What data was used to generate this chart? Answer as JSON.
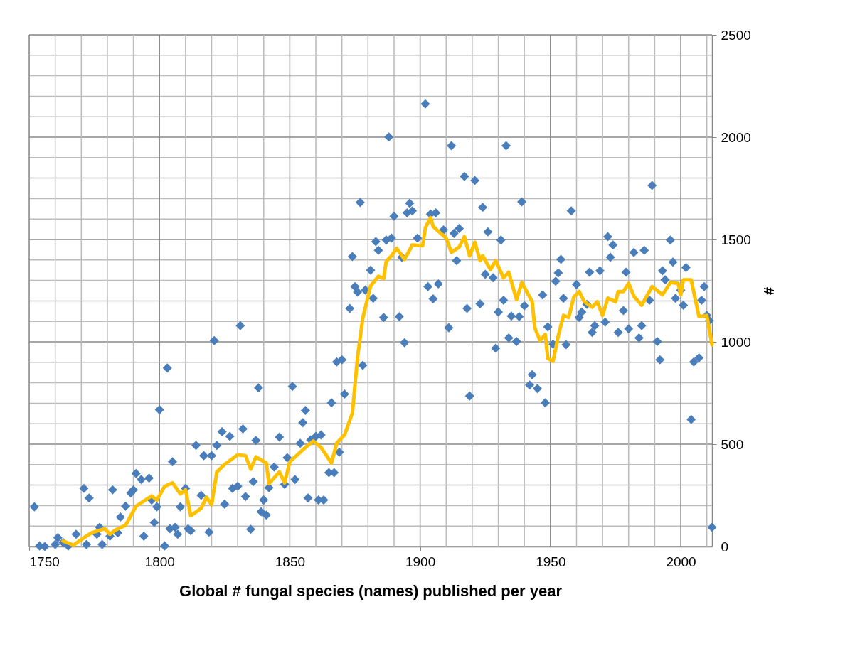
{
  "chart_data": {
    "type": "scatter",
    "title": "Global # fungal species (names) published per year",
    "ylabel": "#",
    "xlim": [
      1750,
      2012
    ],
    "ylim": [
      0,
      2500
    ],
    "xticks": [
      1750,
      {
        "value": 1760,
        "label": null
      },
      {
        "value": 1770,
        "label": null
      },
      {
        "value": 1780,
        "label": null
      },
      {
        "value": 1790,
        "label": null
      },
      1800,
      {
        "value": 1810,
        "label": null
      },
      {
        "value": 1820,
        "label": null
      },
      {
        "value": 1830,
        "label": null
      },
      {
        "value": 1840,
        "label": null
      },
      1850,
      {
        "value": 1860,
        "label": null
      },
      {
        "value": 1870,
        "label": null
      },
      {
        "value": 1880,
        "label": null
      },
      {
        "value": 1890,
        "label": null
      },
      1900,
      {
        "value": 1910,
        "label": null
      },
      {
        "value": 1920,
        "label": null
      },
      {
        "value": 1930,
        "label": null
      },
      {
        "value": 1940,
        "label": null
      },
      1950,
      {
        "value": 1960,
        "label": null
      },
      {
        "value": 1970,
        "label": null
      },
      {
        "value": 1980,
        "label": null
      },
      {
        "value": 1990,
        "label": null
      },
      2000,
      {
        "value": 2010,
        "label": null
      }
    ],
    "yticks": [
      0,
      {
        "value": 100,
        "label": null
      },
      {
        "value": 200,
        "label": null
      },
      {
        "value": 300,
        "label": null
      },
      {
        "value": 400,
        "label": null
      },
      500,
      {
        "value": 600,
        "label": null
      },
      {
        "value": 700,
        "label": null
      },
      {
        "value": 800,
        "label": null
      },
      {
        "value": 900,
        "label": null
      },
      1000,
      {
        "value": 1100,
        "label": null
      },
      {
        "value": 1200,
        "label": null
      },
      {
        "value": 1300,
        "label": null
      },
      {
        "value": 1400,
        "label": null
      },
      1500,
      {
        "value": 1600,
        "label": null
      },
      {
        "value": 1700,
        "label": null
      },
      {
        "value": 1800,
        "label": null
      },
      {
        "value": 1900,
        "label": null
      },
      2000,
      {
        "value": 2100,
        "label": null
      },
      {
        "value": 2200,
        "label": null
      },
      {
        "value": 2300,
        "label": null
      },
      {
        "value": 2400,
        "label": null
      },
      2500
    ],
    "grid": true,
    "series": [
      {
        "marker": "diamond",
        "color": "#4a7ebb",
        "x": [
          1752,
          1754,
          1756,
          1760,
          1761,
          1763,
          1765,
          1768,
          1771,
          1772,
          1773,
          1776,
          1777,
          1778,
          1781,
          1782,
          1784,
          1785,
          1787,
          1789,
          1790,
          1791,
          1793,
          1794,
          1796,
          1797,
          1798,
          1799,
          1800,
          1802,
          1803,
          1804,
          1805,
          1806,
          1807,
          1808,
          1810,
          1811,
          1812,
          1814,
          1816,
          1817,
          1819,
          1820,
          1821,
          1822,
          1824,
          1825,
          1827,
          1828,
          1830,
          1831,
          1832,
          1833,
          1835,
          1836,
          1837,
          1838,
          1839,
          1840,
          1841,
          1842,
          1844,
          1846,
          1848,
          1849,
          1851,
          1852,
          1854,
          1855,
          1856,
          1857,
          1858,
          1860,
          1861,
          1862,
          1863,
          1865,
          1866,
          1867,
          1868,
          1869,
          1870,
          1871,
          1873,
          1874,
          1875,
          1876,
          1877,
          1878,
          1879,
          1881,
          1882,
          1883,
          1884,
          1886,
          1887,
          1888,
          1889,
          1890,
          1892,
          1893,
          1894,
          1895,
          1896,
          1897,
          1899,
          1902,
          1903,
          1904,
          1905,
          1906,
          1907,
          1909,
          1911,
          1912,
          1913,
          1914,
          1915,
          1917,
          1918,
          1919,
          1921,
          1923,
          1924,
          1925,
          1926,
          1928,
          1929,
          1930,
          1931,
          1932,
          1933,
          1934,
          1935,
          1937,
          1938,
          1939,
          1940,
          1942,
          1943,
          1945,
          1947,
          1948,
          1949,
          1951,
          1952,
          1953,
          1954,
          1955,
          1956,
          1958,
          1960,
          1961,
          1962,
          1964,
          1965,
          1966,
          1967,
          1969,
          1971,
          1972,
          1973,
          1974,
          1976,
          1978,
          1979,
          1980,
          1982,
          1984,
          1985,
          1986,
          1988,
          1989,
          1991,
          1992,
          1993,
          1994,
          1996,
          1997,
          1998,
          2000,
          2001,
          2002,
          2004,
          2005,
          2007,
          2008,
          2009,
          2010,
          2011,
          2012
        ],
        "values": [
          194,
          3,
          0,
          10,
          43,
          20,
          3,
          60,
          284,
          10,
          237,
          60,
          94,
          10,
          50,
          277,
          67,
          144,
          197,
          261,
          277,
          357,
          327,
          50,
          334,
          227,
          117,
          194,
          668,
          3,
          872,
          87,
          414,
          94,
          60,
          194,
          284,
          87,
          77,
          494,
          250,
          444,
          70,
          444,
          1006,
          494,
          561,
          207,
          538,
          284,
          294,
          1079,
          575,
          244,
          84,
          317,
          518,
          775,
          170,
          227,
          154,
          287,
          388,
          535,
          304,
          434,
          782,
          327,
          504,
          605,
          665,
          237,
          521,
          538,
          227,
          545,
          227,
          361,
          702,
          361,
          902,
          461,
          912,
          745,
          1163,
          1417,
          1270,
          1243,
          1681,
          885,
          1253,
          1350,
          1213,
          1490,
          1447,
          1119,
          1497,
          2001,
          1507,
          1614,
          1123,
          1413,
          996,
          1630,
          1677,
          1640,
          1507,
          2162,
          1270,
          1624,
          1210,
          1630,
          1283,
          1547,
          1069,
          1958,
          1530,
          1397,
          1554,
          1808,
          1163,
          735,
          1788,
          1186,
          1657,
          1330,
          1537,
          1313,
          969,
          1146,
          1497,
          1203,
          1958,
          1019,
          1126,
          1002,
          1123,
          1684,
          1176,
          789,
          839,
          772,
          1229,
          702,
          1073,
          989,
          1296,
          1337,
          1403,
          1213,
          986,
          1640,
          1280,
          1119,
          1146,
          1183,
          1340,
          1046,
          1079,
          1347,
          1096,
          1514,
          1413,
          1473,
          1046,
          1153,
          1340,
          1063,
          1437,
          1019,
          1079,
          1447,
          1203,
          1764,
          1002,
          912,
          1347,
          1303,
          1497,
          1390,
          1213,
          1253,
          1179,
          1363,
          621,
          902,
          922,
          1203,
          1270,
          1129,
          1103,
          94
        ]
      },
      {
        "type": "line",
        "color": "#ffc000",
        "x": [
          1763,
          1767,
          1771,
          1774,
          1779,
          1781,
          1783,
          1787,
          1791,
          1797,
          1799,
          1802,
          1805,
          1808,
          1810,
          1812,
          1816,
          1818,
          1820,
          1822,
          1825,
          1830,
          1833,
          1835,
          1837,
          1841,
          1842,
          1846,
          1848,
          1850,
          1856,
          1859,
          1862,
          1866,
          1868,
          1871,
          1874,
          1876,
          1878,
          1881,
          1884,
          1886,
          1887,
          1889,
          1891,
          1894,
          1897,
          1901,
          1902,
          1904,
          1905,
          1907,
          1910,
          1912,
          1915,
          1917,
          1919,
          1921,
          1923,
          1924,
          1927,
          1929,
          1932,
          1934,
          1937,
          1939,
          1943,
          1944,
          1946,
          1948,
          1949,
          1951,
          1953,
          1955,
          1957,
          1959,
          1961,
          1963,
          1966,
          1968,
          1970,
          1972,
          1975,
          1976,
          1978,
          1980,
          1982,
          1985,
          1989,
          1993,
          1996,
          1999,
          2000,
          2001,
          2004,
          2007,
          2010,
          2012
        ],
        "values": [
          27,
          7,
          43,
          67,
          87,
          60,
          80,
          104,
          197,
          247,
          227,
          294,
          311,
          257,
          277,
          150,
          187,
          241,
          204,
          364,
          401,
          448,
          444,
          378,
          438,
          408,
          307,
          364,
          311,
          414,
          484,
          515,
          484,
          408,
          505,
          545,
          652,
          926,
          1116,
          1273,
          1320,
          1310,
          1393,
          1420,
          1457,
          1403,
          1473,
          1470,
          1557,
          1607,
          1564,
          1540,
          1507,
          1437,
          1463,
          1514,
          1420,
          1487,
          1397,
          1420,
          1353,
          1397,
          1313,
          1340,
          1206,
          1290,
          1196,
          1069,
          1006,
          1036,
          919,
          905,
          1029,
          1129,
          1119,
          1220,
          1246,
          1196,
          1169,
          1196,
          1129,
          1213,
          1196,
          1246,
          1246,
          1286,
          1223,
          1179,
          1270,
          1230,
          1290,
          1286,
          1230,
          1303,
          1303,
          1123,
          1129,
          986
        ]
      }
    ]
  }
}
